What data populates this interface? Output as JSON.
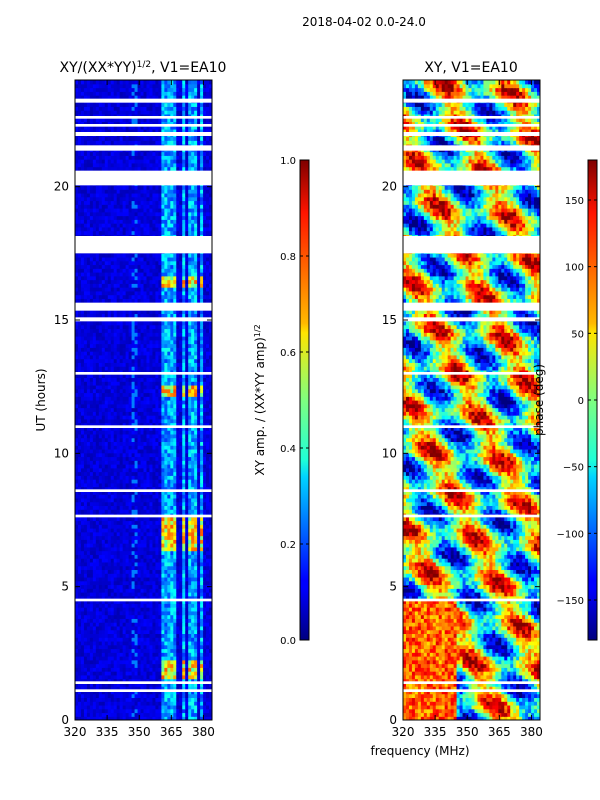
{
  "header": {
    "suptitle": "2018-04-02 0.0-24.0"
  },
  "chart_data": [
    {
      "type": "heatmap",
      "title": "XY/(XX*YY)",
      "title_exponent": "1/2",
      "title_suffix": ", V1=EA10",
      "xlabel": "",
      "ylabel": "UT (hours)",
      "xlim": [
        320,
        384
      ],
      "ylim": [
        0,
        24
      ],
      "xticks": [
        320,
        335,
        350,
        365,
        380
      ],
      "yticks": [
        0,
        5,
        10,
        15,
        20
      ],
      "colorbar": {
        "label": "XY amp. / (XX*YY amp)",
        "label_exponent": "1/2",
        "range": [
          0.0,
          1.0
        ],
        "ticks": [
          "0.0",
          "0.2",
          "0.4",
          "0.6",
          "0.8",
          "1.0"
        ],
        "colormap": "jet"
      },
      "bright_bands_mhz": [
        [
          361,
          363
        ],
        [
          363.5,
          365.5
        ],
        [
          366,
          367.5
        ],
        [
          369.5,
          371
        ],
        [
          373,
          375
        ],
        [
          375.5,
          377
        ],
        [
          378.5,
          380.5
        ]
      ],
      "flagged_hours": [
        [
          23.15,
          23.3
        ],
        [
          22.55,
          22.65
        ],
        [
          22.25,
          22.35
        ],
        [
          21.9,
          22.05
        ],
        [
          21.35,
          21.55
        ],
        [
          20.05,
          20.6
        ],
        [
          17.5,
          18.15
        ],
        [
          15.35,
          15.65
        ],
        [
          14.95,
          15.1
        ],
        [
          12.95,
          13.05
        ],
        [
          10.95,
          11.05
        ],
        [
          8.55,
          8.65
        ],
        [
          7.6,
          7.7
        ],
        [
          4.45,
          4.55
        ],
        [
          1.35,
          1.45
        ],
        [
          1.05,
          1.15
        ]
      ],
      "flagged_gap_color": "#ffffff"
    },
    {
      "type": "heatmap",
      "title": "XY, V1=EA10",
      "xlabel": "frequency (MHz)",
      "ylabel": "",
      "xlim": [
        320,
        384
      ],
      "ylim": [
        0,
        24
      ],
      "xticks": [
        320,
        335,
        350,
        365,
        380
      ],
      "yticks": [
        0,
        5,
        10,
        15,
        20
      ],
      "colorbar": {
        "label": "phase (deg)",
        "range": [
          -180,
          180
        ],
        "ticks": [
          "−150",
          "−100",
          "−50",
          "0",
          "50",
          "100",
          "150"
        ],
        "colormap": "jet"
      },
      "flagged_hours": [
        [
          23.15,
          23.3
        ],
        [
          22.55,
          22.65
        ],
        [
          22.25,
          22.35
        ],
        [
          21.9,
          22.05
        ],
        [
          21.35,
          21.55
        ],
        [
          20.05,
          20.6
        ],
        [
          17.5,
          18.15
        ],
        [
          15.35,
          15.65
        ],
        [
          14.95,
          15.1
        ],
        [
          12.95,
          13.05
        ],
        [
          10.95,
          11.05
        ],
        [
          8.55,
          8.65
        ],
        [
          7.6,
          7.7
        ],
        [
          4.45,
          4.55
        ],
        [
          1.35,
          1.45
        ],
        [
          1.05,
          1.15
        ]
      ]
    }
  ]
}
